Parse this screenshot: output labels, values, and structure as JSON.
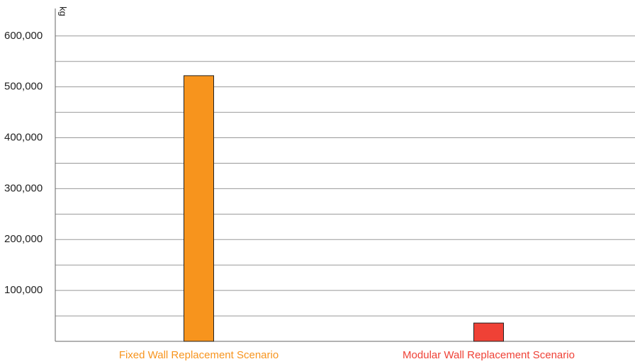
{
  "chart_data": {
    "type": "bar",
    "y_axis_label": "kg",
    "categories": [
      "Fixed Wall Replacement Scenario",
      "Modular Wall Replacement Scenario"
    ],
    "values": [
      522000,
      36000
    ],
    "colors": [
      "#f7941d",
      "#ef4136"
    ],
    "ylim": [
      0,
      654000
    ],
    "yticks": [
      {
        "value": 100000,
        "label": "100,000"
      },
      {
        "value": 200000,
        "label": "200,000"
      },
      {
        "value": 300000,
        "label": "300,000"
      },
      {
        "value": 400000,
        "label": "400,000"
      },
      {
        "value": 500000,
        "label": "500,000"
      },
      {
        "value": 600000,
        "label": "600,000"
      }
    ],
    "minor_yticks": [
      50000,
      150000,
      250000,
      350000,
      450000,
      550000
    ],
    "grid": true
  }
}
